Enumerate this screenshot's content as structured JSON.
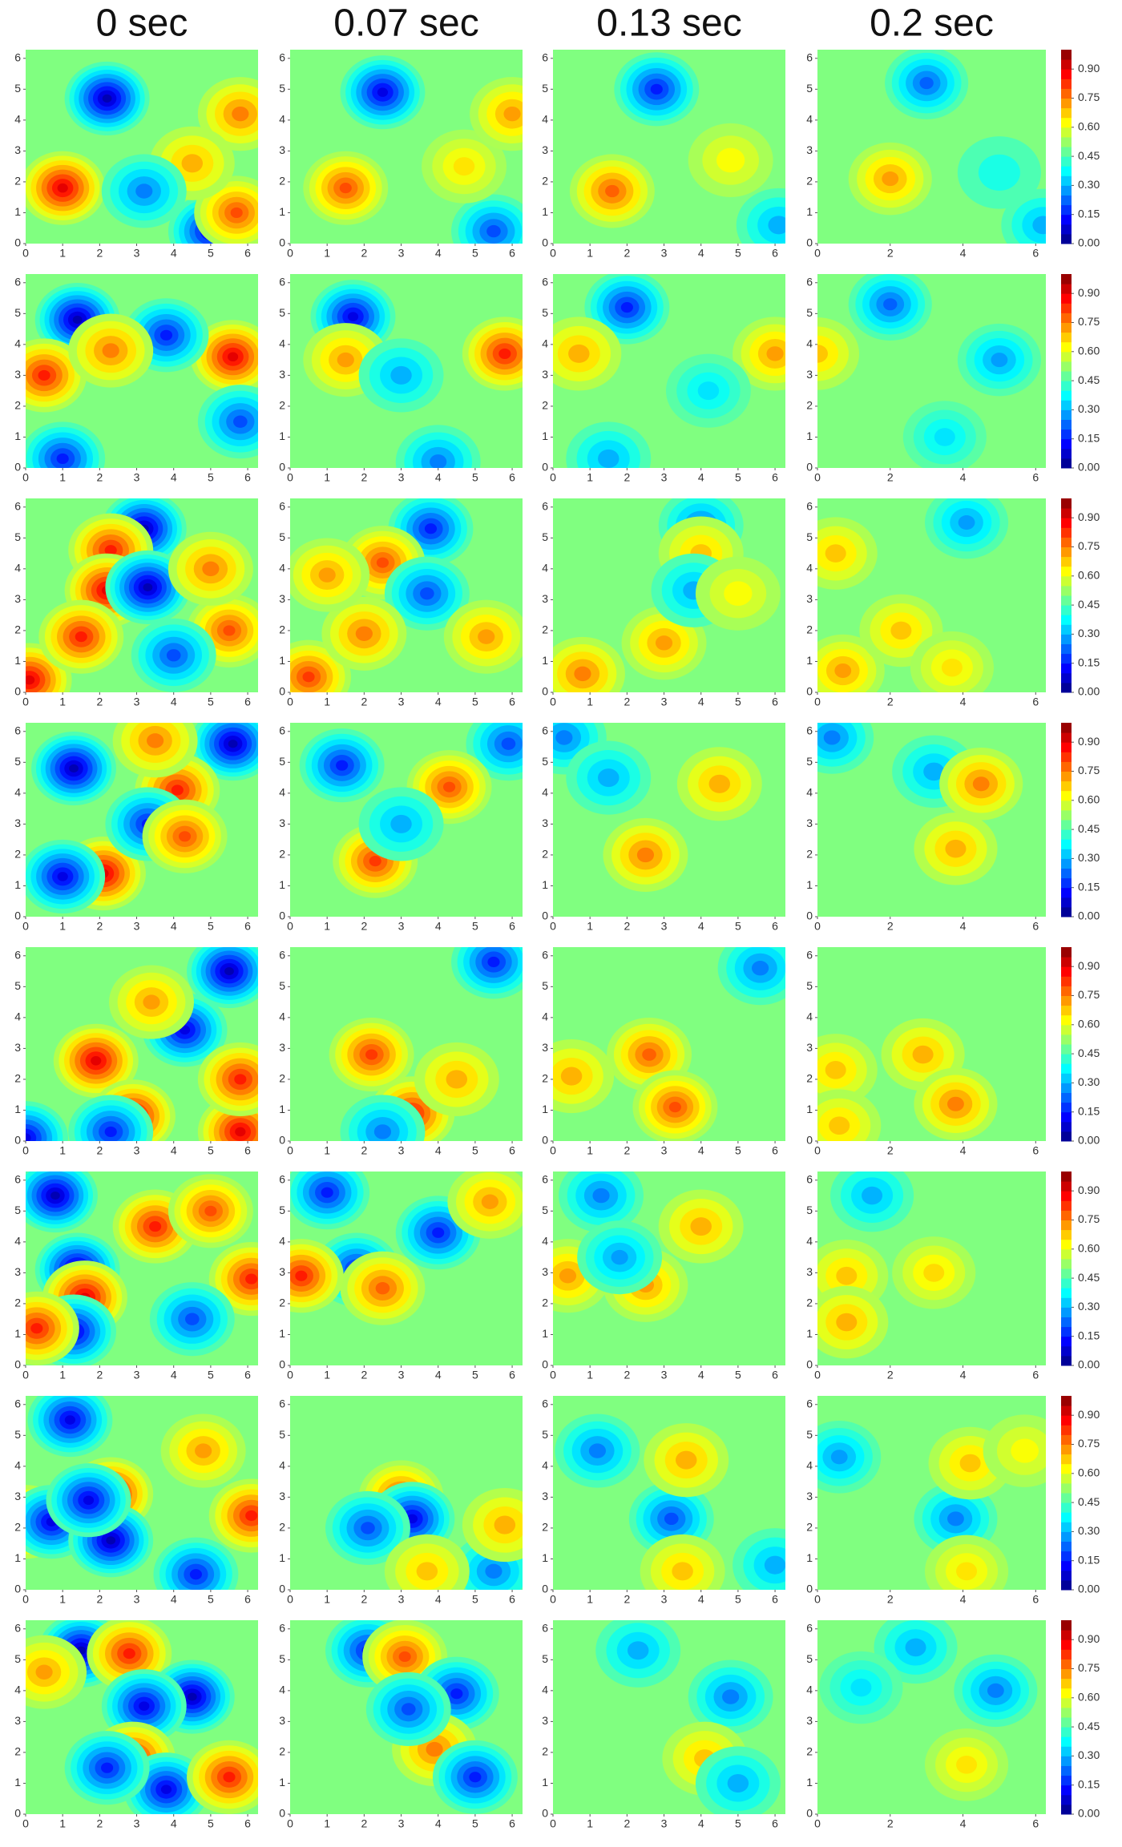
{
  "chart_data": {
    "type": "contour",
    "colormap": "jet",
    "columns": [
      "0 sec",
      "0.07 sec",
      "0.13 sec",
      "0.2 sec"
    ],
    "xlim": [
      0,
      6.28
    ],
    "ylim": [
      0,
      6.28
    ],
    "xticks": [
      [
        0,
        1,
        2,
        3,
        4,
        5,
        6
      ],
      [
        0,
        1,
        2,
        3,
        4,
        5,
        6
      ],
      [
        0,
        1,
        2,
        3,
        4,
        5,
        6
      ],
      [
        0,
        2,
        4,
        6
      ]
    ],
    "yticks": [
      0,
      1,
      2,
      3,
      4,
      5,
      6
    ],
    "clim": [
      0,
      1
    ],
    "cticks": [
      {
        "value": 0,
        "label": "0.00"
      },
      {
        "value": 0.15,
        "label": "0.15"
      },
      {
        "value": 0.3,
        "label": "0.30"
      },
      {
        "value": 0.45,
        "label": "0.45"
      },
      {
        "value": 0.6,
        "label": "0.60"
      },
      {
        "value": 0.75,
        "label": "0.75"
      },
      {
        "value": 0.9,
        "label": "0.90"
      }
    ],
    "base": 0.5,
    "panels": [
      [
        [
          [
            1,
            1.8,
            0.9
          ],
          [
            2.2,
            4.7,
            0.05
          ],
          [
            5,
            0.4,
            0.1
          ],
          [
            5.7,
            1,
            0.8
          ],
          [
            5.8,
            4.2,
            0.75
          ],
          [
            4.5,
            2.6,
            0.7
          ],
          [
            3.2,
            1.7,
            0.25
          ]
        ],
        [
          [
            1.5,
            1.8,
            0.8
          ],
          [
            2.5,
            4.9,
            0.1
          ],
          [
            5.5,
            0.4,
            0.2
          ],
          [
            4.7,
            2.5,
            0.65
          ],
          [
            6,
            4.2,
            0.72
          ]
        ],
        [
          [
            1.6,
            1.7,
            0.78
          ],
          [
            2.8,
            5,
            0.15
          ],
          [
            4.8,
            2.7,
            0.62
          ],
          [
            6.1,
            0.6,
            0.3
          ]
        ],
        [
          [
            2,
            2.1,
            0.72
          ],
          [
            3,
            5.2,
            0.22
          ],
          [
            6.2,
            0.6,
            0.3
          ],
          [
            5,
            2.3,
            0.4
          ]
        ]
      ],
      [
        [
          [
            1.4,
            4.8,
            0.05
          ],
          [
            5.6,
            3.6,
            0.9
          ],
          [
            0.5,
            3,
            0.85
          ],
          [
            3.8,
            4.3,
            0.15
          ],
          [
            1,
            0.3,
            0.15
          ],
          [
            5.8,
            1.5,
            0.2
          ],
          [
            2.3,
            3.8,
            0.75
          ]
        ],
        [
          [
            1.7,
            4.9,
            0.1
          ],
          [
            5.8,
            3.7,
            0.85
          ],
          [
            1.5,
            3.5,
            0.72
          ],
          [
            3,
            3,
            0.3
          ],
          [
            4,
            0.2,
            0.25
          ]
        ],
        [
          [
            2,
            5.2,
            0.15
          ],
          [
            6,
            3.7,
            0.72
          ],
          [
            0.7,
            3.7,
            0.7
          ],
          [
            1.5,
            0.3,
            0.3
          ],
          [
            4.2,
            2.5,
            0.35
          ]
        ],
        [
          [
            2,
            5.3,
            0.22
          ],
          [
            0,
            3.7,
            0.68
          ],
          [
            5,
            3.5,
            0.28
          ],
          [
            3.5,
            1,
            0.35
          ]
        ]
      ],
      [
        [
          [
            0.1,
            0.4,
            0.9
          ],
          [
            3.2,
            5.3,
            0.05
          ],
          [
            2.3,
            4.6,
            0.85
          ],
          [
            2.2,
            3.3,
            0.9
          ],
          [
            3.3,
            3.4,
            0.05
          ],
          [
            1.5,
            1.8,
            0.85
          ],
          [
            5.5,
            2,
            0.8
          ],
          [
            5,
            4,
            0.75
          ],
          [
            4,
            1.2,
            0.2
          ]
        ],
        [
          [
            0.5,
            0.5,
            0.82
          ],
          [
            3.8,
            5.3,
            0.15
          ],
          [
            2.5,
            4.2,
            0.8
          ],
          [
            3.7,
            3.2,
            0.2
          ],
          [
            2,
            1.9,
            0.75
          ],
          [
            5.3,
            1.8,
            0.72
          ],
          [
            1,
            3.8,
            0.72
          ]
        ],
        [
          [
            0.8,
            0.6,
            0.75
          ],
          [
            4,
            5.4,
            0.25
          ],
          [
            4,
            4.5,
            0.68
          ],
          [
            3,
            1.6,
            0.72
          ],
          [
            3.8,
            3.3,
            0.3
          ],
          [
            5,
            3.2,
            0.62
          ]
        ],
        [
          [
            0.7,
            0.7,
            0.72
          ],
          [
            4.1,
            5.5,
            0.28
          ],
          [
            0.5,
            4.5,
            0.68
          ],
          [
            2.3,
            2,
            0.68
          ],
          [
            3.7,
            0.8,
            0.65
          ]
        ]
      ],
      [
        [
          [
            1.3,
            4.8,
            0.05
          ],
          [
            5.6,
            5.6,
            0.05
          ],
          [
            4.1,
            4.1,
            0.85
          ],
          [
            2.1,
            1.4,
            0.9
          ],
          [
            1,
            1.3,
            0.1
          ],
          [
            3.3,
            3,
            0.15
          ],
          [
            3.5,
            5.7,
            0.75
          ],
          [
            4.3,
            2.6,
            0.8
          ]
        ],
        [
          [
            1.4,
            4.9,
            0.15
          ],
          [
            5.9,
            5.6,
            0.2
          ],
          [
            4.3,
            4.2,
            0.8
          ],
          [
            2.3,
            1.8,
            0.82
          ],
          [
            3,
            3,
            0.3
          ]
        ],
        [
          [
            0.3,
            5.8,
            0.25
          ],
          [
            4.5,
            4.3,
            0.7
          ],
          [
            2.5,
            2,
            0.75
          ],
          [
            1.5,
            4.5,
            0.3
          ]
        ],
        [
          [
            0.4,
            5.8,
            0.25
          ],
          [
            3.2,
            4.7,
            0.3
          ],
          [
            4.5,
            4.3,
            0.75
          ],
          [
            3.8,
            2.2,
            0.7
          ]
        ]
      ],
      [
        [
          [
            1.9,
            2.6,
            0.9
          ],
          [
            2.9,
            0.8,
            0.9
          ],
          [
            5.8,
            0.3,
            0.9
          ],
          [
            0,
            0.1,
            0.1
          ],
          [
            5.5,
            5.5,
            0.05
          ],
          [
            4.3,
            3.6,
            0.1
          ],
          [
            5.8,
            2,
            0.85
          ],
          [
            3.4,
            4.5,
            0.72
          ],
          [
            2.3,
            0.3,
            0.15
          ]
        ],
        [
          [
            2.2,
            2.8,
            0.82
          ],
          [
            3.3,
            0.9,
            0.85
          ],
          [
            5.5,
            5.8,
            0.15
          ],
          [
            4.5,
            2,
            0.7
          ],
          [
            2.5,
            0.3,
            0.25
          ]
        ],
        [
          [
            2.6,
            2.8,
            0.78
          ],
          [
            3.3,
            1.1,
            0.8
          ],
          [
            5.6,
            5.6,
            0.25
          ],
          [
            0.5,
            2.1,
            0.7
          ]
        ],
        [
          [
            2.9,
            2.8,
            0.7
          ],
          [
            3.8,
            1.2,
            0.75
          ],
          [
            0.5,
            2.3,
            0.68
          ],
          [
            0.6,
            0.5,
            0.68
          ]
        ]
      ],
      [
        [
          [
            0.8,
            5.5,
            0.05
          ],
          [
            1.4,
            3.1,
            0.05
          ],
          [
            1.6,
            2.2,
            0.9
          ],
          [
            1.3,
            1.1,
            0.1
          ],
          [
            6.1,
            2.8,
            0.85
          ],
          [
            3.5,
            4.5,
            0.85
          ],
          [
            5,
            5,
            0.8
          ],
          [
            4.5,
            1.5,
            0.2
          ],
          [
            0.3,
            1.2,
            0.85
          ]
        ],
        [
          [
            1,
            5.6,
            0.15
          ],
          [
            1.8,
            3.1,
            0.15
          ],
          [
            2.5,
            2.5,
            0.78
          ],
          [
            0.3,
            2.9,
            0.85
          ],
          [
            4,
            4.3,
            0.15
          ],
          [
            5.4,
            5.3,
            0.72
          ]
        ],
        [
          [
            1.3,
            5.5,
            0.25
          ],
          [
            0.4,
            2.9,
            0.72
          ],
          [
            2.5,
            2.6,
            0.72
          ],
          [
            4,
            4.5,
            0.7
          ],
          [
            1.8,
            3.5,
            0.28
          ]
        ],
        [
          [
            1.5,
            5.5,
            0.3
          ],
          [
            0.8,
            2.9,
            0.68
          ],
          [
            3.2,
            3,
            0.66
          ],
          [
            0.8,
            1.4,
            0.7
          ]
        ]
      ],
      [
        [
          [
            1.2,
            5.5,
            0.1
          ],
          [
            2.3,
            3.1,
            0.9
          ],
          [
            0,
            2.2,
            0.9
          ],
          [
            0.7,
            2.2,
            0.1
          ],
          [
            2.3,
            1.6,
            0.05
          ],
          [
            1.7,
            2.9,
            0.1
          ],
          [
            4.8,
            4.5,
            0.72
          ],
          [
            6.1,
            2.4,
            0.85
          ],
          [
            4.6,
            0.5,
            0.15
          ]
        ],
        [
          [
            3,
            3,
            0.8
          ],
          [
            3.3,
            2.3,
            0.1
          ],
          [
            2.1,
            2,
            0.2
          ],
          [
            5.5,
            0.6,
            0.25
          ],
          [
            5.8,
            2.1,
            0.7
          ],
          [
            3.7,
            0.6,
            0.68
          ]
        ],
        [
          [
            3.2,
            2.3,
            0.2
          ],
          [
            1.2,
            4.5,
            0.25
          ],
          [
            3.6,
            4.2,
            0.7
          ],
          [
            6,
            0.8,
            0.3
          ],
          [
            3.5,
            0.6,
            0.68
          ]
        ],
        [
          [
            3.8,
            2.3,
            0.25
          ],
          [
            0.6,
            4.3,
            0.28
          ],
          [
            4.2,
            4.1,
            0.68
          ],
          [
            4.1,
            0.6,
            0.65
          ],
          [
            5.7,
            4.5,
            0.62
          ]
        ]
      ],
      [
        [
          [
            1.5,
            5.3,
            0.05
          ],
          [
            2.8,
            5.2,
            0.85
          ],
          [
            4.5,
            3.8,
            0.05
          ],
          [
            3.2,
            3.5,
            0.1
          ],
          [
            2.9,
            1.8,
            0.85
          ],
          [
            3.8,
            0.8,
            0.1
          ],
          [
            5.5,
            1.2,
            0.85
          ],
          [
            2.2,
            1.5,
            0.15
          ],
          [
            0.5,
            4.6,
            0.72
          ]
        ],
        [
          [
            2.1,
            5.3,
            0.15
          ],
          [
            3.1,
            5.1,
            0.8
          ],
          [
            4.5,
            3.9,
            0.15
          ],
          [
            3.9,
            2.1,
            0.75
          ],
          [
            5,
            1.2,
            0.15
          ],
          [
            3.2,
            3.4,
            0.2
          ]
        ],
        [
          [
            4.8,
            3.8,
            0.25
          ],
          [
            2.3,
            5.3,
            0.3
          ],
          [
            4.1,
            1.8,
            0.68
          ],
          [
            5,
            1,
            0.3
          ]
        ],
        [
          [
            4.9,
            4,
            0.25
          ],
          [
            2.7,
            5.4,
            0.3
          ],
          [
            4.1,
            1.6,
            0.65
          ],
          [
            1.2,
            4.1,
            0.35
          ]
        ]
      ]
    ]
  }
}
